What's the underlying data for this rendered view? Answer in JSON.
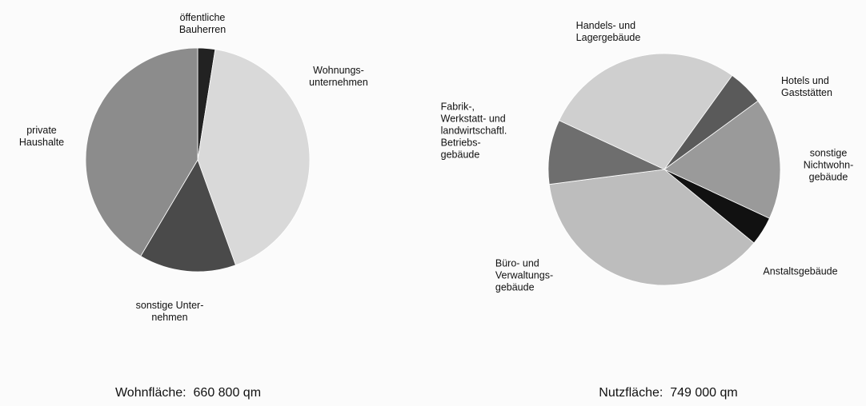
{
  "chart_data": [
    {
      "type": "pie",
      "categories": [
        "öffentliche\nBauherren",
        "Wohnungs-\nunternehmen",
        "sonstige Unter-\nnehmen",
        "private\nHaushalte"
      ],
      "values": [
        2.5,
        42,
        14,
        41.5
      ],
      "colors": [
        "#222222",
        "#d9d9d9",
        "#4a4a4a",
        "#8c8c8c"
      ],
      "caption": "Wohnfläche:  660 800 qm"
    },
    {
      "type": "pie",
      "categories": [
        "Handels- und\nLagergebäude",
        "Hotels und\nGaststätten",
        "sonstige\nNichtwohn-\ngebäude",
        "Anstaltsgebäude",
        "Büro- und\nVerwaltungs-\ngebäude",
        "Fabrik-,\nWerkstatt- und\nlandwirtschaftl.\nBetriebs-\ngebäude"
      ],
      "values": [
        28,
        5,
        17,
        4,
        37,
        9
      ],
      "colors": [
        "#cfcfcf",
        "#5a5a5a",
        "#9a9a9a",
        "#111111",
        "#bdbdbd",
        "#6e6e6e"
      ],
      "caption": "Nutzfläche:  749 000 qm"
    }
  ]
}
